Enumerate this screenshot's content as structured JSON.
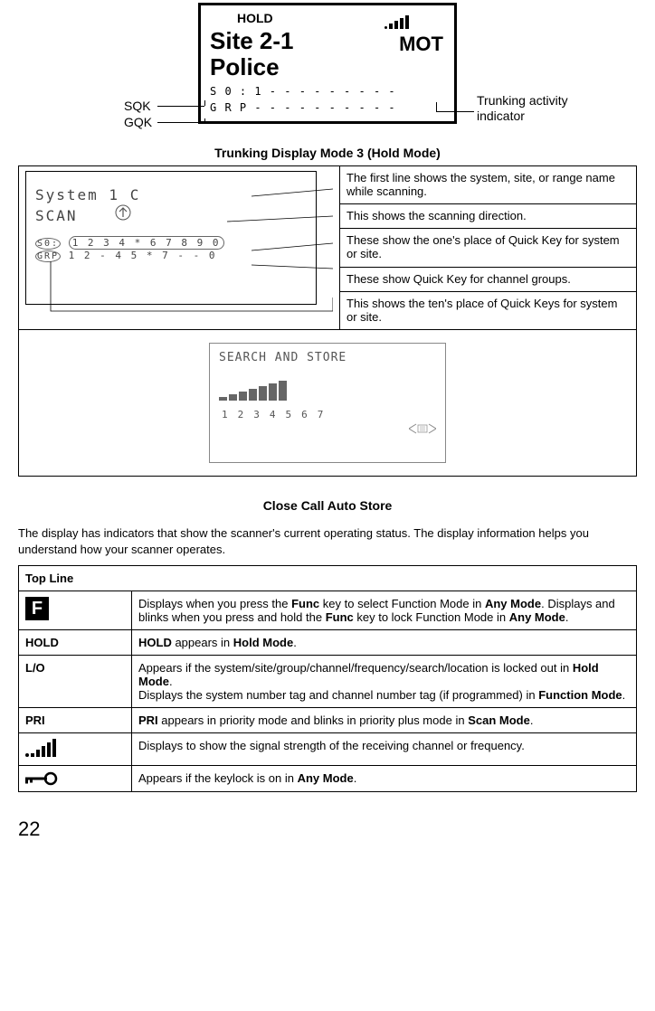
{
  "top_lcd": {
    "hold": "HOLD",
    "site": "Site 2-1",
    "mot": "MOT",
    "police": "Police",
    "s_line": "S 0 : 1 - - - - - - - - -",
    "g_line": "G R P - - - - - - - - - -"
  },
  "top_callouts": {
    "sqk": "SQK",
    "gqk": "GQK",
    "trunking": "Trunking activity indicator"
  },
  "section1_title": "Trunking Display Mode 3 (Hold Mode)",
  "small_lcd": {
    "line1": "System 1      C",
    "line2": " SCAN",
    "s0": "S0: 1 2 3 4 * 6 7 8 9 0",
    "grp": "GRP 1 2 - 4 5 * 7 - - 0"
  },
  "desc_rows": [
    "The first line shows the system, site, or range name while scanning.",
    "This shows the scanning direction.",
    "These show the one's place of Quick Key for system or site.",
    "These show Quick Key for channel groups.",
    "This shows the ten's place of Quick Keys for system or site."
  ],
  "search_store": {
    "title": "SEARCH AND STORE",
    "nums": "1234567"
  },
  "section2_title": "Close Call Auto Store",
  "body_text": "The display has indicators that show the scanner's current operating status. The display information helps you understand how your scanner operates.",
  "ind_table": {
    "header": "Top Line",
    "rows": [
      {
        "icon_type": "f",
        "label": "",
        "text_parts": [
          "Displays when you press the ",
          "Func",
          " key to select Function Mode in ",
          "Any Mode",
          ". Displays and blinks when you press and hold the ",
          "Func",
          " key to lock Function Mode in ",
          "Any Mode",
          "."
        ]
      },
      {
        "icon_type": "text",
        "label": "HOLD",
        "text_parts": [
          "",
          "HOLD",
          " appears in ",
          "Hold Mode",
          "."
        ]
      },
      {
        "icon_type": "text",
        "label": "L/O",
        "text_parts": [
          "Appears if the system/site/group/channel/frequency/search/location is locked out in ",
          "Hold Mode",
          ".\nDisplays the system number tag and channel number tag (if programmed) in ",
          "Function Mode",
          "."
        ]
      },
      {
        "icon_type": "text",
        "label": "PRI",
        "text_parts": [
          "",
          "PRI",
          " appears in priority mode and blinks in priority plus mode in ",
          "Scan Mode",
          "."
        ]
      },
      {
        "icon_type": "signal",
        "label": "",
        "text_parts": [
          "Displays to show the signal strength of the receiving channel or frequency."
        ]
      },
      {
        "icon_type": "key",
        "label": "",
        "text_parts": [
          "Appears if the keylock is on in ",
          "Any Mode",
          "."
        ]
      }
    ]
  },
  "page_num": "22",
  "colors": {
    "signal_heights": [
      4,
      8,
      12,
      16,
      20
    ],
    "signal_dot": 4,
    "bar_heights": [
      4,
      7,
      10,
      13,
      16,
      19,
      22
    ]
  }
}
